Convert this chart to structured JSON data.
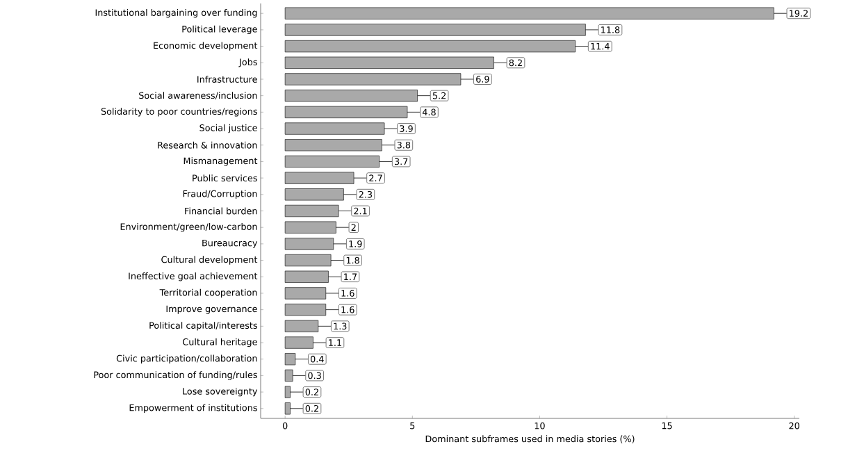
{
  "chart_data": {
    "type": "bar",
    "orientation": "horizontal",
    "xlabel": "Dominant subframes used in media stories (%)",
    "categories": [
      "Institutional bargaining over funding",
      "Political leverage",
      "Economic development",
      "Jobs",
      "Infrastructure",
      "Social awareness/inclusion",
      "Solidarity to poor countries/regions",
      "Social justice",
      "Research & innovation",
      "Mismanagement",
      "Public services",
      "Fraud/Corruption",
      "Financial burden",
      "Environment/green/low-carbon",
      "Bureaucracy",
      "Cultural development",
      "Ineffective goal achievement",
      "Territorial cooperation",
      "Improve governance",
      "Political capital/interests",
      "Cultural heritage",
      "Civic participation/collaboration",
      "Poor communication of funding/rules",
      "Lose sovereignty",
      "Empowerment of institutions"
    ],
    "values": [
      19.2,
      11.8,
      11.4,
      8.2,
      6.9,
      5.2,
      4.8,
      3.9,
      3.8,
      3.7,
      2.7,
      2.3,
      2.1,
      2,
      1.9,
      1.8,
      1.7,
      1.6,
      1.6,
      1.3,
      1.1,
      0.4,
      0.3,
      0.2,
      0.2
    ],
    "color": "#a9a9a9",
    "data_labels": true,
    "xlim": [
      -0.96,
      20.2
    ],
    "xticks": [
      0,
      5,
      10,
      15,
      20
    ],
    "grid": false
  }
}
